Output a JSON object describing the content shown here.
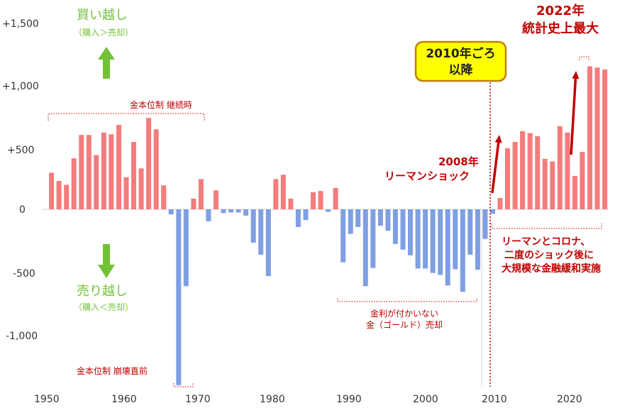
{
  "chart_data": {
    "type": "bar",
    "title": "",
    "xlabel": "",
    "ylabel": "",
    "x": [
      1950,
      1951,
      1952,
      1953,
      1954,
      1955,
      1956,
      1957,
      1958,
      1959,
      1960,
      1961,
      1962,
      1963,
      1964,
      1965,
      1966,
      1967,
      1968,
      1969,
      1970,
      1971,
      1972,
      1973,
      1974,
      1975,
      1976,
      1977,
      1978,
      1979,
      1980,
      1981,
      1982,
      1983,
      1984,
      1985,
      1986,
      1987,
      1988,
      1989,
      1990,
      1991,
      1992,
      1993,
      1994,
      1995,
      1996,
      1997,
      1998,
      1999,
      2000,
      2001,
      2002,
      2003,
      2004,
      2005,
      2006,
      2007,
      2008,
      2009,
      2010,
      2011,
      2012,
      2013,
      2014,
      2015,
      2016,
      2017,
      2018,
      2019,
      2020,
      2021,
      2022,
      2023,
      2024
    ],
    "values": [
      290,
      225,
      195,
      405,
      590,
      590,
      430,
      610,
      595,
      670,
      255,
      535,
      325,
      725,
      635,
      190,
      -40,
      -1395,
      -610,
      85,
      240,
      -95,
      150,
      -30,
      -25,
      -25,
      -50,
      -265,
      -360,
      -530,
      240,
      275,
      85,
      -140,
      -85,
      135,
      145,
      -20,
      170,
      -420,
      -195,
      -140,
      -610,
      -465,
      -130,
      -170,
      -275,
      -320,
      -365,
      -470,
      -470,
      -505,
      -520,
      -605,
      -475,
      -655,
      -360,
      -480,
      -235,
      -35,
      90,
      485,
      535,
      620,
      605,
      580,
      400,
      380,
      660,
      610,
      265,
      455,
      1135,
      1125,
      1110
    ],
    "colors": {
      "positive": "#f47c7c",
      "negative": "#7f9fe3",
      "accent": "#c00000",
      "green": "#72c238",
      "label_box_fill": "#ffff00",
      "label_box_border": "#c08000"
    },
    "ylim": [
      -1400,
      1500
    ],
    "y_ticks": [
      "+1,500",
      "+1,000",
      "+500",
      "0",
      "-500",
      "-1,000"
    ],
    "y_tick_values": [
      1500,
      1000,
      500,
      0,
      -500,
      -1000
    ],
    "x_ticks": [
      "1950",
      "1960",
      "1970",
      "1980",
      "1990",
      "2000",
      "2010",
      "2020"
    ],
    "x_tick_values": [
      1950,
      1960,
      1970,
      1980,
      1990,
      2000,
      2010,
      2020
    ],
    "annotations": {
      "buy_title": "買い越し",
      "buy_sub": "（購入＞売却）",
      "sell_title": "売り越し",
      "sell_sub": "（購入＜売却）",
      "gold_standard": "金本位制 継続時",
      "gold_collapse": "金本位制 崩壊直前",
      "interest_line1": "金利が付かいない",
      "interest_line2": "金（ゴールド）売却",
      "lehman_line1": "2008年",
      "lehman_line2": "リーマンショック",
      "box_line1": "2010年ごろ",
      "box_line2": "以降",
      "record_line1": "2022年",
      "record_line2": "統計史上最大",
      "qe_line1": "リーマンとコロナ、",
      "qe_line2": "二度のショック後に",
      "qe_line3": "大規模な金融緩和実施"
    }
  }
}
